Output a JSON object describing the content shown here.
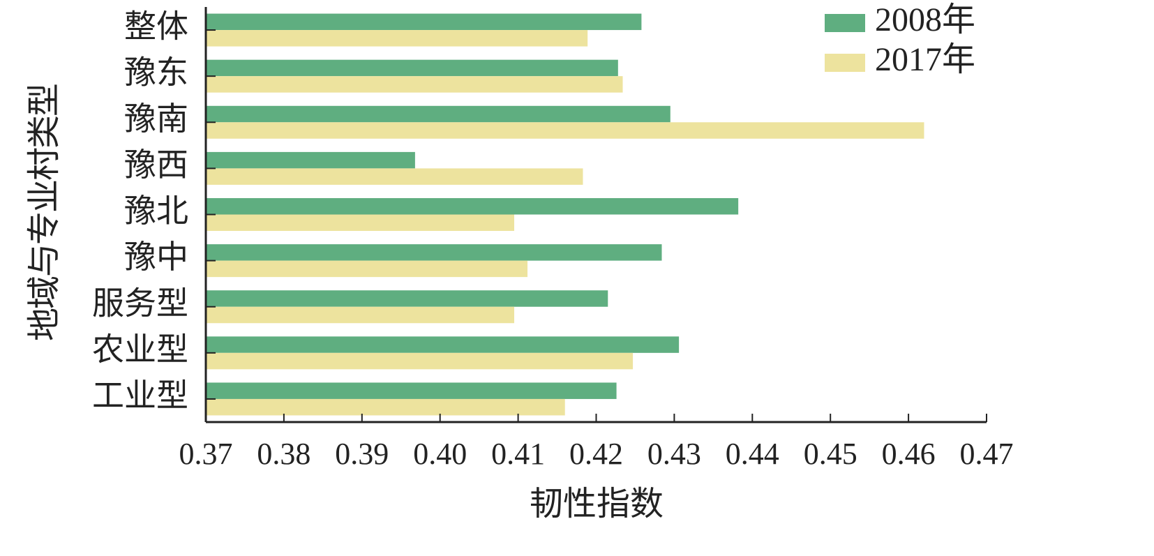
{
  "chart_data": {
    "type": "hbar",
    "xlabel": "韧性指数",
    "ylabel": "地域与专业村类型",
    "categories": [
      "整体",
      "豫东",
      "豫南",
      "豫西",
      "豫北",
      "豫中",
      "服务型",
      "农业型",
      "工业型"
    ],
    "series": [
      {
        "name": "2008年",
        "color": "#5fae80",
        "values": [
          0.4258,
          0.4228,
          0.4295,
          0.3968,
          0.4382,
          0.4284,
          0.4215,
          0.4306,
          0.4226
        ]
      },
      {
        "name": "2017年",
        "color": "#ede39e",
        "values": [
          0.4189,
          0.4234,
          0.462,
          0.4183,
          0.4095,
          0.4112,
          0.4095,
          0.4247,
          0.416
        ]
      }
    ],
    "xlim": [
      0.37,
      0.47
    ],
    "xticks": [
      0.37,
      0.38,
      0.39,
      {
        "value": 0.4,
        "label": "0.40"
      },
      0.41,
      0.42,
      0.43,
      0.44,
      0.45,
      0.46,
      0.47
    ],
    "legend": "upper-right"
  }
}
